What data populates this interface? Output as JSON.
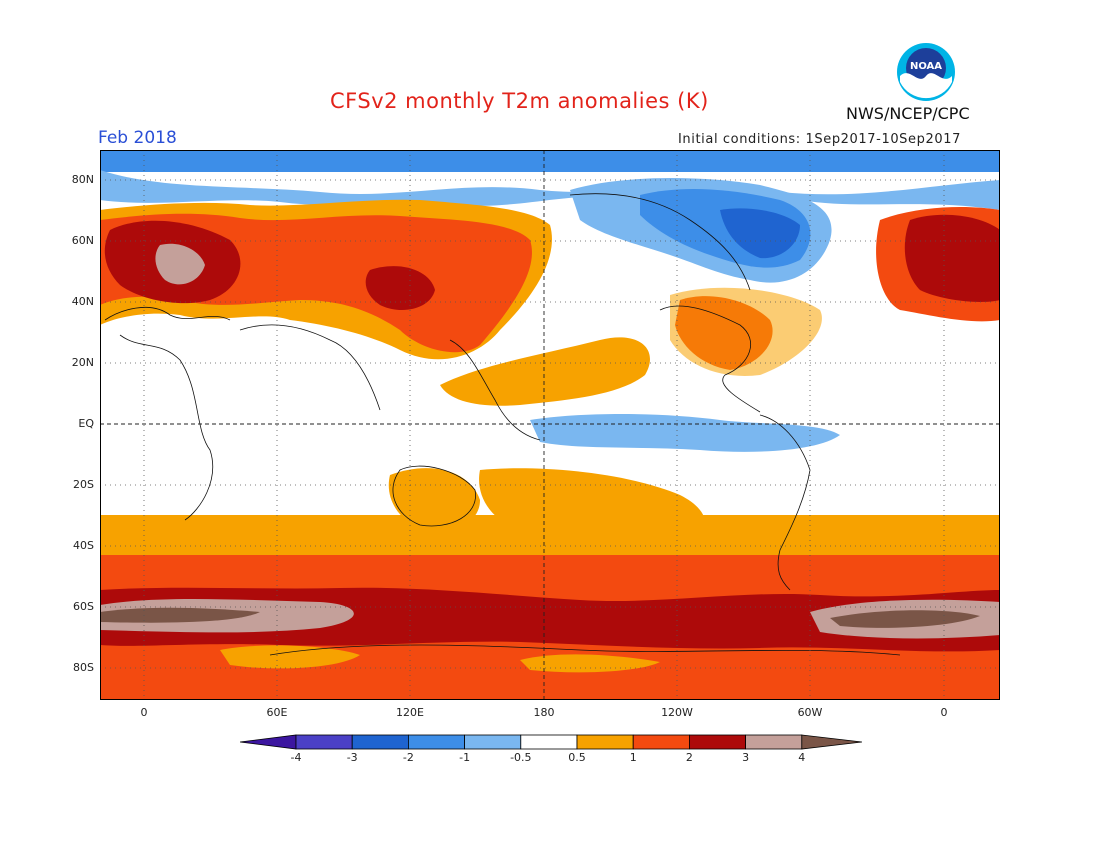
{
  "header": {
    "title": "CFSv2 monthly T2m anomalies (K)",
    "period": "Feb 2018",
    "initial_conditions": "Initial conditions: 1Sep2017-10Sep2017",
    "agency": "NWS/NCEP/CPC",
    "logo_text": "NOAA"
  },
  "map": {
    "projection": "cylindrical equidistant",
    "center_longitude": "180",
    "lat_labels": [
      "80N",
      "60N",
      "40N",
      "20N",
      "EQ",
      "20S",
      "40S",
      "60S",
      "80S"
    ],
    "lon_labels": [
      "0",
      "60E",
      "120E",
      "180",
      "120W",
      "60W",
      "0"
    ],
    "grid": "dotted every 20 degrees latitude / 30 degrees longitude; dashed at equator and 180"
  },
  "colorbar": {
    "ticks": [
      "-4",
      "-3",
      "-2",
      "-1",
      "-0.5",
      "0.5",
      "1",
      "2",
      "3",
      "4"
    ],
    "colors": [
      "#3c16a0",
      "#4b40c6",
      "#1f64d0",
      "#3d8ee8",
      "#7ab7f0",
      "#ffffff",
      "#f7a200",
      "#f34a10",
      "#ad0a0a",
      "#c4a09a",
      "#7a5547"
    ]
  }
}
